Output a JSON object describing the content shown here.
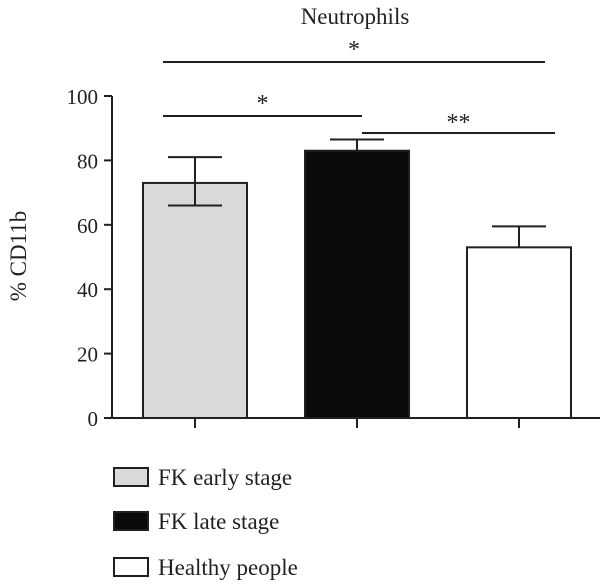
{
  "chart_data": {
    "type": "bar",
    "title": "Neutrophils",
    "ylabel": "% CD11b",
    "xlabel": "",
    "ylim": [
      0,
      100
    ],
    "yticks": [
      0,
      20,
      40,
      60,
      80,
      100
    ],
    "categories": [
      "FK early stage",
      "FK late stage",
      "Healthy people"
    ],
    "values": [
      73,
      83,
      53
    ],
    "error_plus": [
      8,
      3.5,
      6.5
    ],
    "error_minus": [
      7,
      0,
      0
    ],
    "colors": [
      "#d9d9d9",
      "#0a0a0a",
      "#ffffff"
    ],
    "legend": {
      "placement": "bottom-left",
      "entries": [
        "FK early stage",
        "FK late stage",
        "Healthy people"
      ]
    },
    "significance": [
      {
        "from": 0,
        "to": 2,
        "label": "*"
      },
      {
        "from": 0,
        "to": 1,
        "label": "*"
      },
      {
        "from": 1,
        "to": 2,
        "label": "**"
      }
    ],
    "grid": false
  }
}
